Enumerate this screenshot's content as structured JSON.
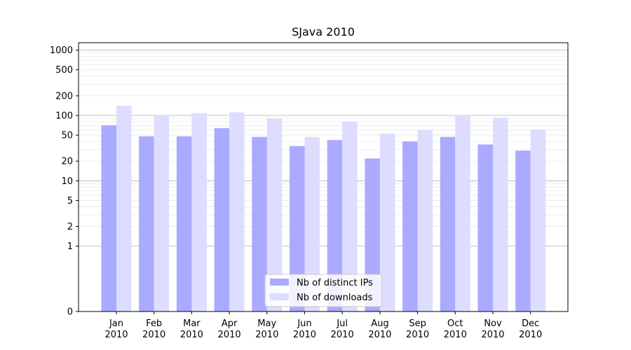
{
  "chart_data": {
    "type": "bar",
    "title": "SJava 2010",
    "xlabel": "",
    "ylabel": "",
    "yscale": "symlog",
    "ylim": [
      0,
      1300
    ],
    "yticks": [
      0,
      1,
      2,
      5,
      10,
      20,
      50,
      100,
      200,
      500,
      1000
    ],
    "ytick_labels": [
      "0",
      "1",
      "2",
      "5",
      "10",
      "20",
      "50",
      "100",
      "200",
      "500",
      "1000"
    ],
    "categories": [
      {
        "month": "Jan",
        "year": "2010"
      },
      {
        "month": "Feb",
        "year": "2010"
      },
      {
        "month": "Mar",
        "year": "2010"
      },
      {
        "month": "Apr",
        "year": "2010"
      },
      {
        "month": "May",
        "year": "2010"
      },
      {
        "month": "Jun",
        "year": "2010"
      },
      {
        "month": "Jul",
        "year": "2010"
      },
      {
        "month": "Aug",
        "year": "2010"
      },
      {
        "month": "Sep",
        "year": "2010"
      },
      {
        "month": "Oct",
        "year": "2010"
      },
      {
        "month": "Nov",
        "year": "2010"
      },
      {
        "month": "Dec",
        "year": "2010"
      }
    ],
    "series": [
      {
        "name": "Nb of distinct IPs",
        "color": "#aaaaff",
        "values": [
          71,
          48,
          48,
          64,
          47,
          34,
          42,
          22,
          40,
          47,
          36,
          29
        ]
      },
      {
        "name": "Nb of downloads",
        "color": "#ddddff",
        "values": [
          141,
          100,
          109,
          112,
          90,
          47,
          80,
          53,
          60,
          100,
          92,
          61
        ]
      }
    ],
    "grid": true,
    "legend_position": "lower center"
  }
}
